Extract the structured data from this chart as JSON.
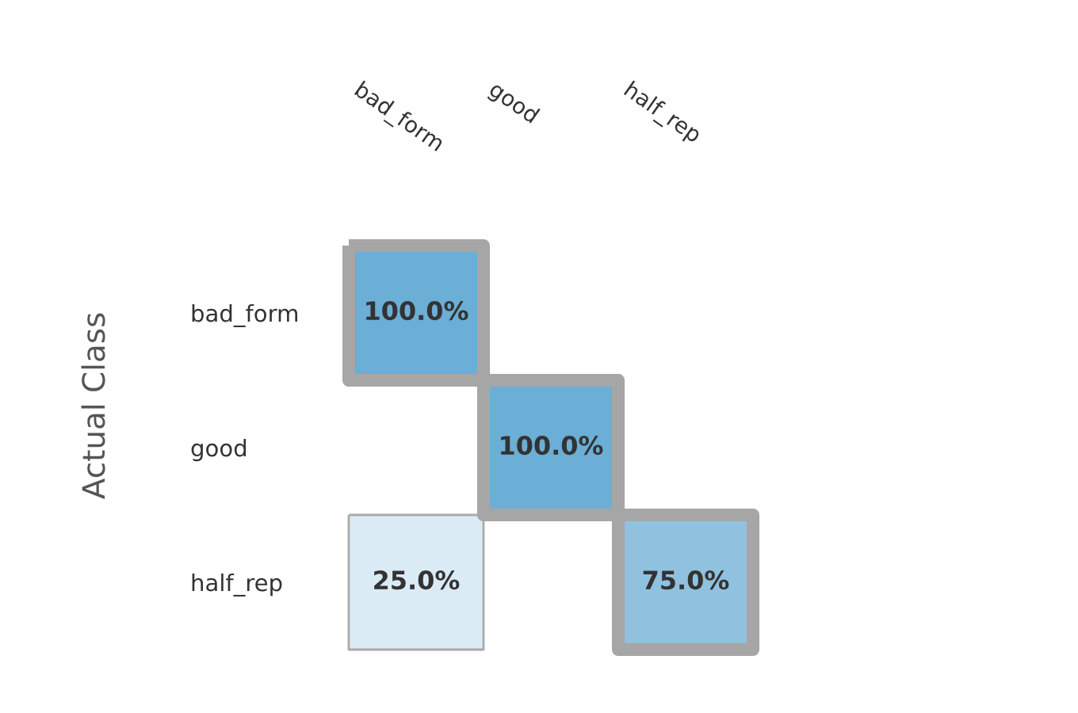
{
  "chart_data": {
    "type": "heatmap",
    "ylabel": "Actual Class",
    "categories": [
      "bad_form",
      "good",
      "half_rep"
    ],
    "y_categories": [
      "bad_form",
      "good",
      "half_rep"
    ],
    "cells": [
      [
        100,
        null,
        null
      ],
      [
        null,
        100,
        null
      ],
      [
        25,
        null,
        75
      ]
    ],
    "cell_labels": [
      [
        "100.0%",
        null,
        null
      ],
      [
        null,
        "100.0%",
        null
      ],
      [
        "25.0%",
        null,
        "75.0%"
      ]
    ]
  }
}
